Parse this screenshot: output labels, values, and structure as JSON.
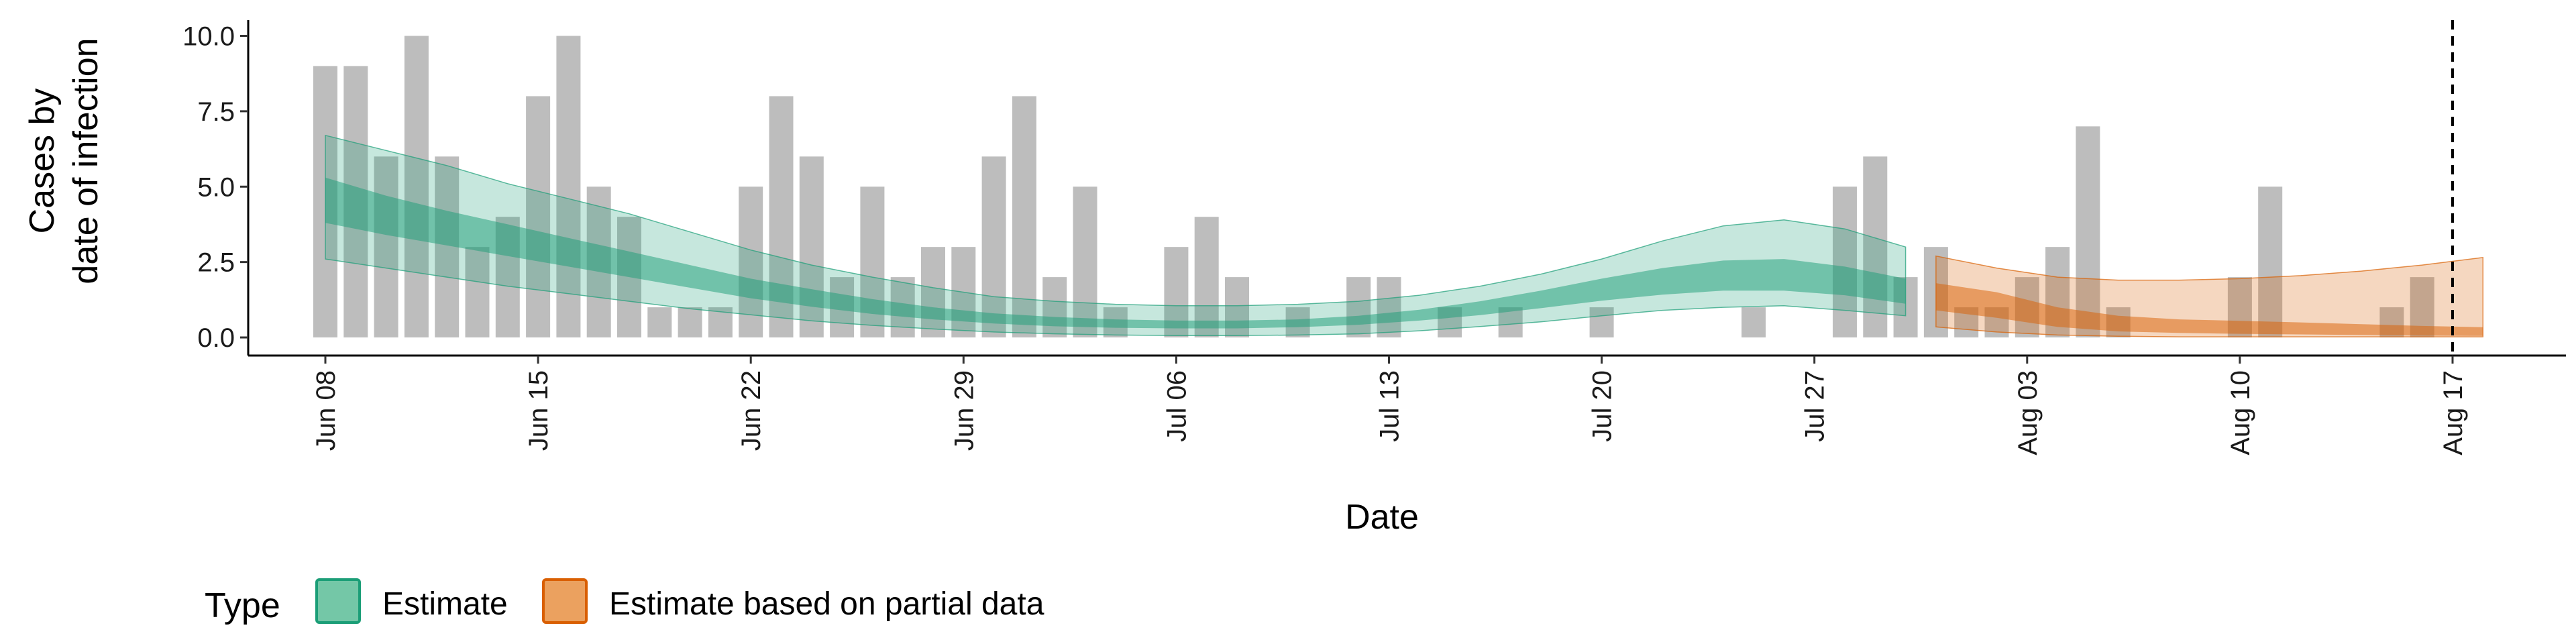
{
  "chart_data": {
    "type": "bar",
    "xlabel": "Date",
    "ylabel": "Cases by\ndate of infection",
    "ylim": [
      -0.6,
      10.3
    ],
    "y_ticks": [
      0,
      2.5,
      5,
      7.5,
      10
    ],
    "y_tick_labels": [
      "0.0",
      "2.5",
      "5.0",
      "7.5",
      "10.0"
    ],
    "x_tick_labels": [
      "Jun 08",
      "Jun 15",
      "Jun 22",
      "Jun 29",
      "Jul 06",
      "Jul 13",
      "Jul 20",
      "Jul 27",
      "Aug 03",
      "Aug 10",
      "Aug 17"
    ],
    "start_date": "Jun 08",
    "end_marker_label": "Aug 17",
    "grid": false,
    "bars": {
      "color": "#bdbdbd",
      "dates": [
        "Jun 08",
        "Jun 09",
        "Jun 10",
        "Jun 11",
        "Jun 12",
        "Jun 13",
        "Jun 14",
        "Jun 15",
        "Jun 16",
        "Jun 17",
        "Jun 18",
        "Jun 19",
        "Jun 20",
        "Jun 21",
        "Jun 22",
        "Jun 23",
        "Jun 24",
        "Jun 25",
        "Jun 26",
        "Jun 27",
        "Jun 28",
        "Jun 29",
        "Jun 30",
        "Jul 01",
        "Jul 02",
        "Jul 03",
        "Jul 04",
        "Jul 05",
        "Jul 06",
        "Jul 07",
        "Jul 08",
        "Jul 09",
        "Jul 10",
        "Jul 11",
        "Jul 12",
        "Jul 13",
        "Jul 14",
        "Jul 15",
        "Jul 16",
        "Jul 17",
        "Jul 18",
        "Jul 19",
        "Jul 20",
        "Jul 21",
        "Jul 22",
        "Jul 23",
        "Jul 24",
        "Jul 25",
        "Jul 26",
        "Jul 27",
        "Jul 28",
        "Jul 29",
        "Jul 30",
        "Jul 31",
        "Aug 01",
        "Aug 02",
        "Aug 03",
        "Aug 04",
        "Aug 05",
        "Aug 06",
        "Aug 07",
        "Aug 08",
        "Aug 09",
        "Aug 10",
        "Aug 11",
        "Aug 12",
        "Aug 13",
        "Aug 14",
        "Aug 15",
        "Aug 16",
        "Aug 17"
      ],
      "values": [
        9,
        9,
        6,
        10,
        6,
        3,
        4,
        8,
        10,
        5,
        4,
        1,
        1,
        1,
        5,
        8,
        6,
        2,
        5,
        2,
        3,
        3,
        6,
        8,
        2,
        5,
        1,
        0,
        3,
        4,
        2,
        0,
        1,
        0,
        2,
        2,
        0,
        1,
        0,
        1,
        0,
        0,
        1,
        0,
        0,
        0,
        0,
        1,
        0,
        0,
        5,
        6,
        2,
        3,
        1,
        1,
        2,
        3,
        7,
        1,
        0,
        0,
        0,
        2,
        5,
        0,
        0,
        0,
        1,
        2,
        0
      ]
    },
    "series": [
      {
        "name": "Estimate",
        "color": "#1b9e77",
        "dates": [
          "Jun 08",
          "Jun 10",
          "Jun 12",
          "Jun 14",
          "Jun 16",
          "Jun 18",
          "Jun 20",
          "Jun 22",
          "Jun 24",
          "Jun 26",
          "Jun 28",
          "Jun 30",
          "Jul 02",
          "Jul 04",
          "Jul 06",
          "Jul 08",
          "Jul 10",
          "Jul 12",
          "Jul 14",
          "Jul 16",
          "Jul 18",
          "Jul 20",
          "Jul 22",
          "Jul 24",
          "Jul 26",
          "Jul 28",
          "Jul 30"
        ],
        "outer_upper": [
          6.7,
          6.2,
          5.7,
          5.1,
          4.6,
          4.1,
          3.5,
          2.9,
          2.4,
          2.0,
          1.65,
          1.35,
          1.2,
          1.1,
          1.05,
          1.05,
          1.1,
          1.2,
          1.4,
          1.7,
          2.1,
          2.6,
          3.2,
          3.7,
          3.9,
          3.6,
          3.0
        ],
        "outer_lower": [
          2.6,
          2.3,
          2.0,
          1.7,
          1.45,
          1.2,
          0.95,
          0.75,
          0.55,
          0.4,
          0.28,
          0.18,
          0.12,
          0.08,
          0.06,
          0.06,
          0.08,
          0.12,
          0.22,
          0.36,
          0.52,
          0.72,
          0.9,
          1.0,
          1.05,
          0.9,
          0.72
        ],
        "inner_upper": [
          5.3,
          4.7,
          4.2,
          3.75,
          3.3,
          2.85,
          2.4,
          1.95,
          1.6,
          1.27,
          1.0,
          0.8,
          0.68,
          0.6,
          0.56,
          0.56,
          0.6,
          0.72,
          0.92,
          1.2,
          1.55,
          1.95,
          2.3,
          2.55,
          2.6,
          2.35,
          1.95
        ],
        "inner_lower": [
          3.8,
          3.4,
          3.05,
          2.7,
          2.35,
          2.0,
          1.65,
          1.3,
          1.02,
          0.78,
          0.6,
          0.46,
          0.37,
          0.32,
          0.3,
          0.3,
          0.34,
          0.42,
          0.56,
          0.74,
          0.97,
          1.22,
          1.42,
          1.55,
          1.55,
          1.4,
          1.12
        ]
      },
      {
        "name": "Estimate based on partial data",
        "color": "#d95f02",
        "dates": [
          "Jul 31",
          "Aug 02",
          "Aug 04",
          "Aug 06",
          "Aug 08",
          "Aug 10",
          "Aug 12",
          "Aug 14",
          "Aug 16",
          "Aug 18"
        ],
        "outer_upper": [
          2.7,
          2.3,
          2.0,
          1.9,
          1.9,
          1.95,
          2.05,
          2.2,
          2.4,
          2.65
        ],
        "outer_lower": [
          0.35,
          0.18,
          0.08,
          0.04,
          0.02,
          0.02,
          0.02,
          0.02,
          0.02,
          0.02
        ],
        "inner_upper": [
          1.8,
          1.5,
          1.0,
          0.72,
          0.6,
          0.55,
          0.5,
          0.44,
          0.38,
          0.34
        ],
        "inner_lower": [
          0.9,
          0.65,
          0.35,
          0.2,
          0.15,
          0.12,
          0.1,
          0.08,
          0.06,
          0.05
        ]
      }
    ],
    "legend": {
      "title": "Type",
      "position": "bottom-left",
      "items": [
        {
          "label": "Estimate",
          "fill": "#74c7a7",
          "stroke": "#1b9e77"
        },
        {
          "label": "Estimate based on partial data",
          "fill": "#eba15f",
          "stroke": "#d95f02"
        }
      ]
    }
  }
}
